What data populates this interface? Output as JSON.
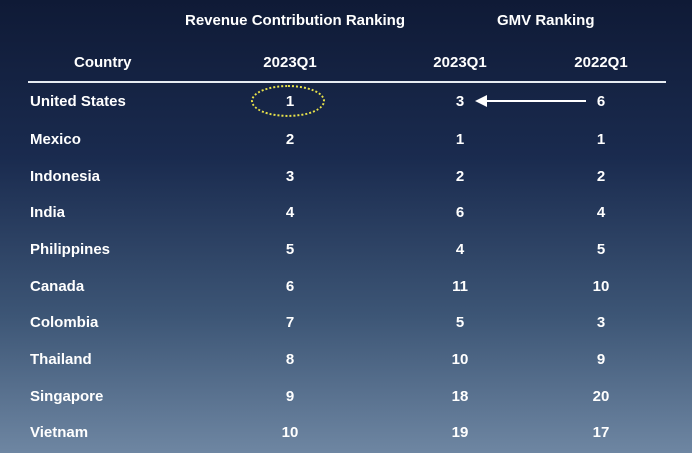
{
  "headers": {
    "group_revenue": "Revenue Contribution Ranking",
    "group_gmv": "GMV Ranking",
    "col_country": "Country",
    "col_rev_2023q1": "2023Q1",
    "col_gmv_2023q1": "2023Q1",
    "col_gmv_2022q1": "2022Q1"
  },
  "rows": [
    {
      "country": "United States",
      "rev_2023q1": "1",
      "gmv_2023q1": "3",
      "gmv_2022q1": "6"
    },
    {
      "country": "Mexico",
      "rev_2023q1": "2",
      "gmv_2023q1": "1",
      "gmv_2022q1": "1"
    },
    {
      "country": "Indonesia",
      "rev_2023q1": "3",
      "gmv_2023q1": "2",
      "gmv_2022q1": "2"
    },
    {
      "country": "India",
      "rev_2023q1": "4",
      "gmv_2023q1": "6",
      "gmv_2022q1": "4"
    },
    {
      "country": "Philippines",
      "rev_2023q1": "5",
      "gmv_2023q1": "4",
      "gmv_2022q1": "5"
    },
    {
      "country": "Canada",
      "rev_2023q1": "6",
      "gmv_2023q1": "11",
      "gmv_2022q1": "10"
    },
    {
      "country": "Colombia",
      "rev_2023q1": "7",
      "gmv_2023q1": "5",
      "gmv_2022q1": "3"
    },
    {
      "country": "Thailand",
      "rev_2023q1": "8",
      "gmv_2023q1": "10",
      "gmv_2022q1": "9"
    },
    {
      "country": "Singapore",
      "rev_2023q1": "9",
      "gmv_2023q1": "18",
      "gmv_2022q1": "20"
    },
    {
      "country": "Vietnam",
      "rev_2023q1": "10",
      "gmv_2023q1": "19",
      "gmv_2022q1": "17"
    }
  ],
  "colors": {
    "highlight": "#e8e24a",
    "text": "#ffffff"
  }
}
